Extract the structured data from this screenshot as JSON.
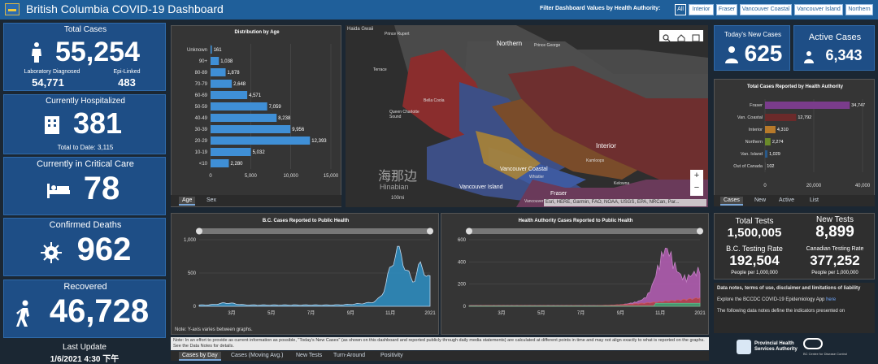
{
  "header": {
    "title": "British Columbia COVID-19 Dashboard",
    "filter_label": "Filter Dashboard Values by Health Authority:",
    "filters": [
      "All",
      "Interior",
      "Fraser",
      "Vancouver Coastal",
      "Vancouver Island",
      "Northern"
    ]
  },
  "cases": {
    "label": "Total Cases",
    "value": "55,254",
    "lab_label": "Laboratory Diagnosed",
    "lab_value": "54,771",
    "epi_label": "Epi-Linked",
    "epi_value": "483"
  },
  "hosp": {
    "label": "Currently Hospitalized",
    "value": "381",
    "total": "Total to Date: 3,115"
  },
  "critical": {
    "label": "Currently in Critical Care",
    "value": "78"
  },
  "deaths": {
    "label": "Confirmed Deaths",
    "value": "962"
  },
  "recovered": {
    "label": "Recovered",
    "value": "46,728"
  },
  "update": {
    "label": "Last Update",
    "value": "1/6/2021 4:30 下午"
  },
  "age": {
    "title": "Distribution by Age",
    "tabs": [
      "Age",
      "Sex"
    ]
  },
  "map": {
    "labels": [
      "Northern",
      "Prince George",
      "Bella Coola",
      "Queen Charlotte Sound",
      "Vancouver Coastal",
      "Vancouver Island",
      "Whistler",
      "Interior",
      "Fraser",
      "Kamloops",
      "Kelowna",
      "Prince Rupert",
      "Terrace",
      "Haida Gwaii",
      "Vancouver"
    ],
    "attribution": "Esri, HERE, Garmin, FAO, NOAA, USGS, EPA, NRCan, Par...",
    "scale": "100mi",
    "watermark_cn": "海那边",
    "watermark_en": "Hinabian"
  },
  "newcases": {
    "label": "Today's New Cases",
    "value": "625"
  },
  "active": {
    "label": "Active Cases",
    "value": "6,343"
  },
  "ha": {
    "title": "Total Cases Reported by Health Authority",
    "tabs": [
      "Cases",
      "New",
      "Active",
      "List"
    ]
  },
  "tests": {
    "total_label": "Total Tests",
    "total": "1,500,005",
    "new_label": "New Tests",
    "new": "8,899",
    "bc_rate_label": "B.C. Testing Rate",
    "bc_rate": "192,504",
    "bc_rate_unit": "People per 1,000,000",
    "ca_rate_label": "Canadian Testing Rate",
    "ca_rate": "377,252",
    "ca_rate_unit": "People per 1,000,000"
  },
  "bc_cases": {
    "title": "B.C. Cases Reported to Public Health",
    "note": "Note: Y-axis varies between graphs."
  },
  "ha_cases": {
    "title": "Health Authority Cases Reported to Public Health"
  },
  "bottom": {
    "note": "Note: In an effort to provide as current information as possible, \"Today's New Cases\" (as shown on this dashboard and reported publicly through daily media statements) are calculated at different points in time and may not align exactly to what is reported on the graphs. See the Data Notes for details.",
    "tabs": [
      "Cases by Day",
      "Cases (Moving Avg.)",
      "New Tests",
      "Turn-Around",
      "Positivity"
    ],
    "logo1a": "Provincial Health",
    "logo1b": "Services Authority",
    "logo2": "BC Centre for Disease Control"
  },
  "datanotes": {
    "title": "Data notes, terms of use, disclaimer and limitations of liability",
    "line1": "Explore the BCCDC COVID-19 Epidemiology App",
    "line1_link": "here",
    "line2": "The following data notes define the indicators presented on"
  },
  "chart_data": [
    {
      "type": "bar",
      "title": "Distribution by Age",
      "categories": [
        "Unknown",
        "90+",
        "80-89",
        "70-79",
        "60-69",
        "50-59",
        "40-49",
        "30-39",
        "20-29",
        "10-19",
        "<10"
      ],
      "values": [
        161,
        1038,
        1878,
        2648,
        4571,
        7059,
        8238,
        9956,
        12393,
        5032,
        2280
      ],
      "xlim": [
        0,
        15000
      ],
      "xticks": [
        "0",
        "5,000",
        "10,000",
        "15,000"
      ]
    },
    {
      "type": "bar",
      "title": "Total Cases Reported by Health Authority",
      "categories": [
        "Fraser",
        "Van. Coastal",
        "Interior",
        "Northern",
        "Van. Island",
        "Out of Canada"
      ],
      "values": [
        34747,
        12792,
        4310,
        2274,
        1029,
        102
      ],
      "colors": [
        "#7a3c8c",
        "#6b2a2a",
        "#b87a2a",
        "#6b8a2a",
        "#2a5a8a",
        "#7a7a7a"
      ],
      "xlim": [
        0,
        40000
      ],
      "xticks": [
        "0",
        "20,000",
        "40,000"
      ]
    },
    {
      "type": "area",
      "title": "B.C. Cases Reported to Public Health",
      "xticks": [
        "3月",
        "5月",
        "7月",
        "9月",
        "11月",
        "2021"
      ],
      "yticks": [
        "0",
        "500",
        "1,000"
      ],
      "ylim": [
        0,
        1000
      ]
    },
    {
      "type": "area",
      "title": "Health Authority Cases Reported to Public Health",
      "xticks": [
        "3月",
        "5月",
        "7月",
        "9月",
        "11月",
        "2021"
      ],
      "yticks": [
        "0",
        "200",
        "400",
        "600"
      ],
      "ylim": [
        0,
        600
      ]
    }
  ]
}
